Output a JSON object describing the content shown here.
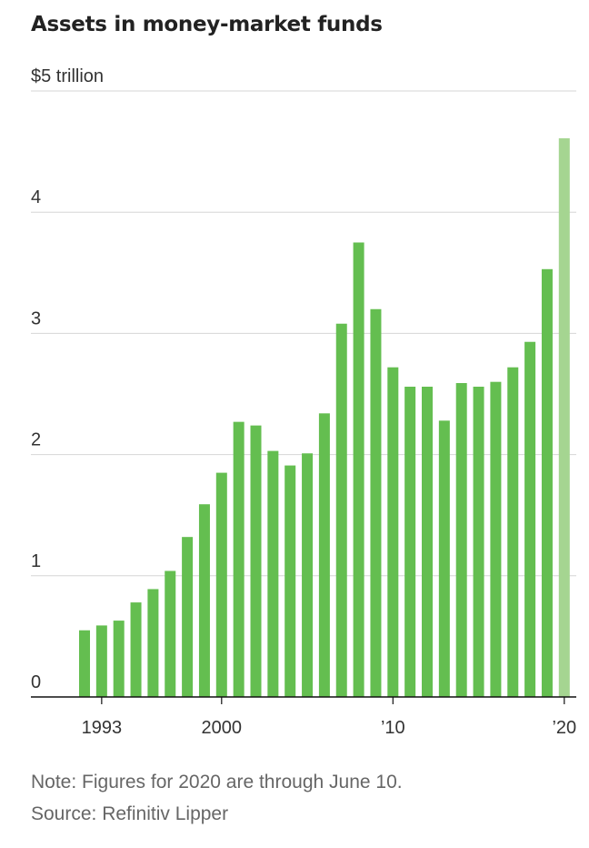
{
  "chart_data": {
    "type": "bar",
    "title": "Assets in money-market funds",
    "ylabel": "",
    "xlabel": "",
    "ylim": [
      0,
      5
    ],
    "y_ticks": [
      {
        "value": 0,
        "label": "0"
      },
      {
        "value": 1,
        "label": "1"
      },
      {
        "value": 2,
        "label": "2"
      },
      {
        "value": 3,
        "label": "3"
      },
      {
        "value": 4,
        "label": "4"
      },
      {
        "value": 5,
        "label": "$5 trillion"
      }
    ],
    "x_ticks": [
      {
        "year": 1993,
        "label": "1993"
      },
      {
        "year": 2000,
        "label": "2000"
      },
      {
        "year": 2010,
        "label": "'10"
      },
      {
        "year": 2020,
        "label": "'20"
      }
    ],
    "grid": true,
    "colors": {
      "bar": "#64be50",
      "bar_partial": "#a5d591"
    },
    "categories": [
      1992,
      1993,
      1994,
      1995,
      1996,
      1997,
      1998,
      1999,
      2000,
      2001,
      2002,
      2003,
      2004,
      2005,
      2006,
      2007,
      2008,
      2009,
      2010,
      2011,
      2012,
      2013,
      2014,
      2015,
      2016,
      2017,
      2018,
      2019,
      2020
    ],
    "values": [
      0.55,
      0.59,
      0.63,
      0.78,
      0.89,
      1.04,
      1.32,
      1.59,
      1.85,
      2.27,
      2.24,
      2.03,
      1.91,
      2.01,
      2.34,
      3.08,
      3.75,
      3.2,
      2.72,
      2.56,
      2.56,
      2.28,
      2.59,
      2.56,
      2.6,
      2.72,
      2.93,
      3.53,
      4.61
    ],
    "partial_categories": [
      2020
    ]
  },
  "footer": {
    "note": "Note: Figures for 2020 are through June 10.",
    "source": "Source: Refinitiv Lipper"
  }
}
